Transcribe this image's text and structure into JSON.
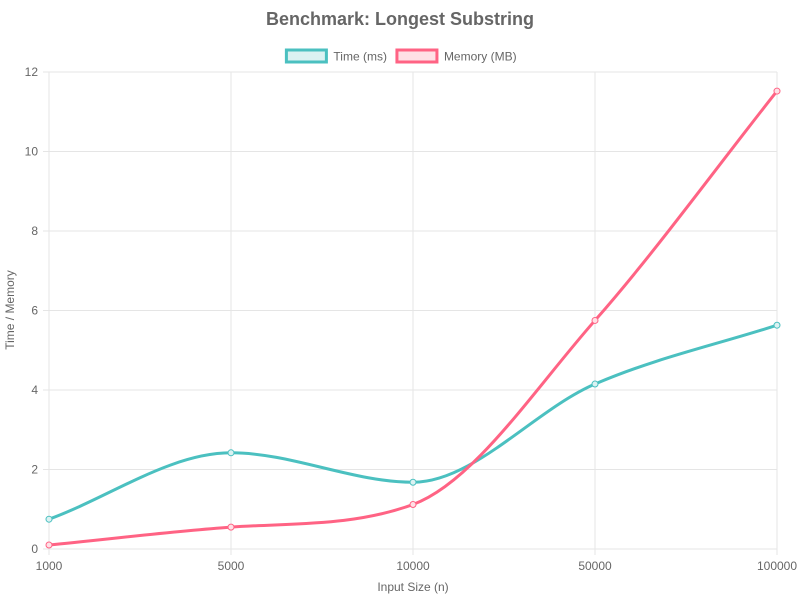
{
  "chart_data": {
    "type": "line",
    "title": "Benchmark: Longest Substring",
    "xlabel": "Input Size (n)",
    "ylabel": "Time / Memory",
    "categories": [
      "1000",
      "5000",
      "10000",
      "50000",
      "100000"
    ],
    "ylim": [
      0,
      12
    ],
    "yticks": [
      0,
      2,
      4,
      6,
      8,
      10,
      12
    ],
    "grid": true,
    "legend_position": "top-center",
    "series": [
      {
        "name": "Time (ms)",
        "color": "#4bc0c0",
        "fill": "#dbf2f2",
        "values": [
          0.75,
          2.42,
          1.68,
          4.15,
          5.63
        ]
      },
      {
        "name": "Memory (MB)",
        "color": "#ff6384",
        "fill": "#ffe0e6",
        "values": [
          0.1,
          0.55,
          1.12,
          5.75,
          11.52
        ]
      }
    ]
  }
}
